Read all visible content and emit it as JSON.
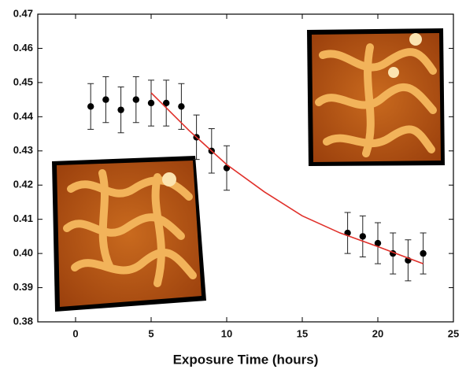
{
  "chart_data": {
    "type": "scatter",
    "x_label": "Exposure Time (hours)",
    "xlim": [
      -2.5,
      25
    ],
    "xticks": [
      0,
      5,
      10,
      15,
      20,
      25
    ],
    "ylim": [
      0.38,
      0.47
    ],
    "yticks": [
      0.38,
      0.39,
      {
        "value": 0.4,
        "label": "0.40"
      },
      0.41,
      0.42,
      0.43,
      0.44,
      0.45,
      0.46,
      0.47
    ],
    "series": [
      {
        "type": "scatter",
        "color": "#000000",
        "x": [
          1,
          2,
          3,
          4,
          5,
          6,
          7,
          8,
          9,
          10,
          18,
          19,
          20,
          21,
          22,
          23
        ],
        "values": [
          0.443,
          0.445,
          0.442,
          0.445,
          0.444,
          0.444,
          0.443,
          0.434,
          0.43,
          0.425,
          0.406,
          0.405,
          0.403,
          0.4,
          0.398,
          0.4
        ],
        "errors": [
          0.0067,
          0.0067,
          0.0067,
          0.0067,
          0.0067,
          0.0067,
          0.0067,
          0.0065,
          0.0065,
          0.0065,
          0.006,
          0.006,
          0.006,
          0.006,
          0.006,
          0.006
        ]
      },
      {
        "type": "line",
        "color": "#e0302a",
        "x": [
          5,
          7.5,
          10,
          12.5,
          15,
          17.5,
          20,
          23
        ],
        "values": [
          0.447,
          0.436,
          0.426,
          0.418,
          0.411,
          0.406,
          0.402,
          0.397
        ]
      }
    ]
  }
}
